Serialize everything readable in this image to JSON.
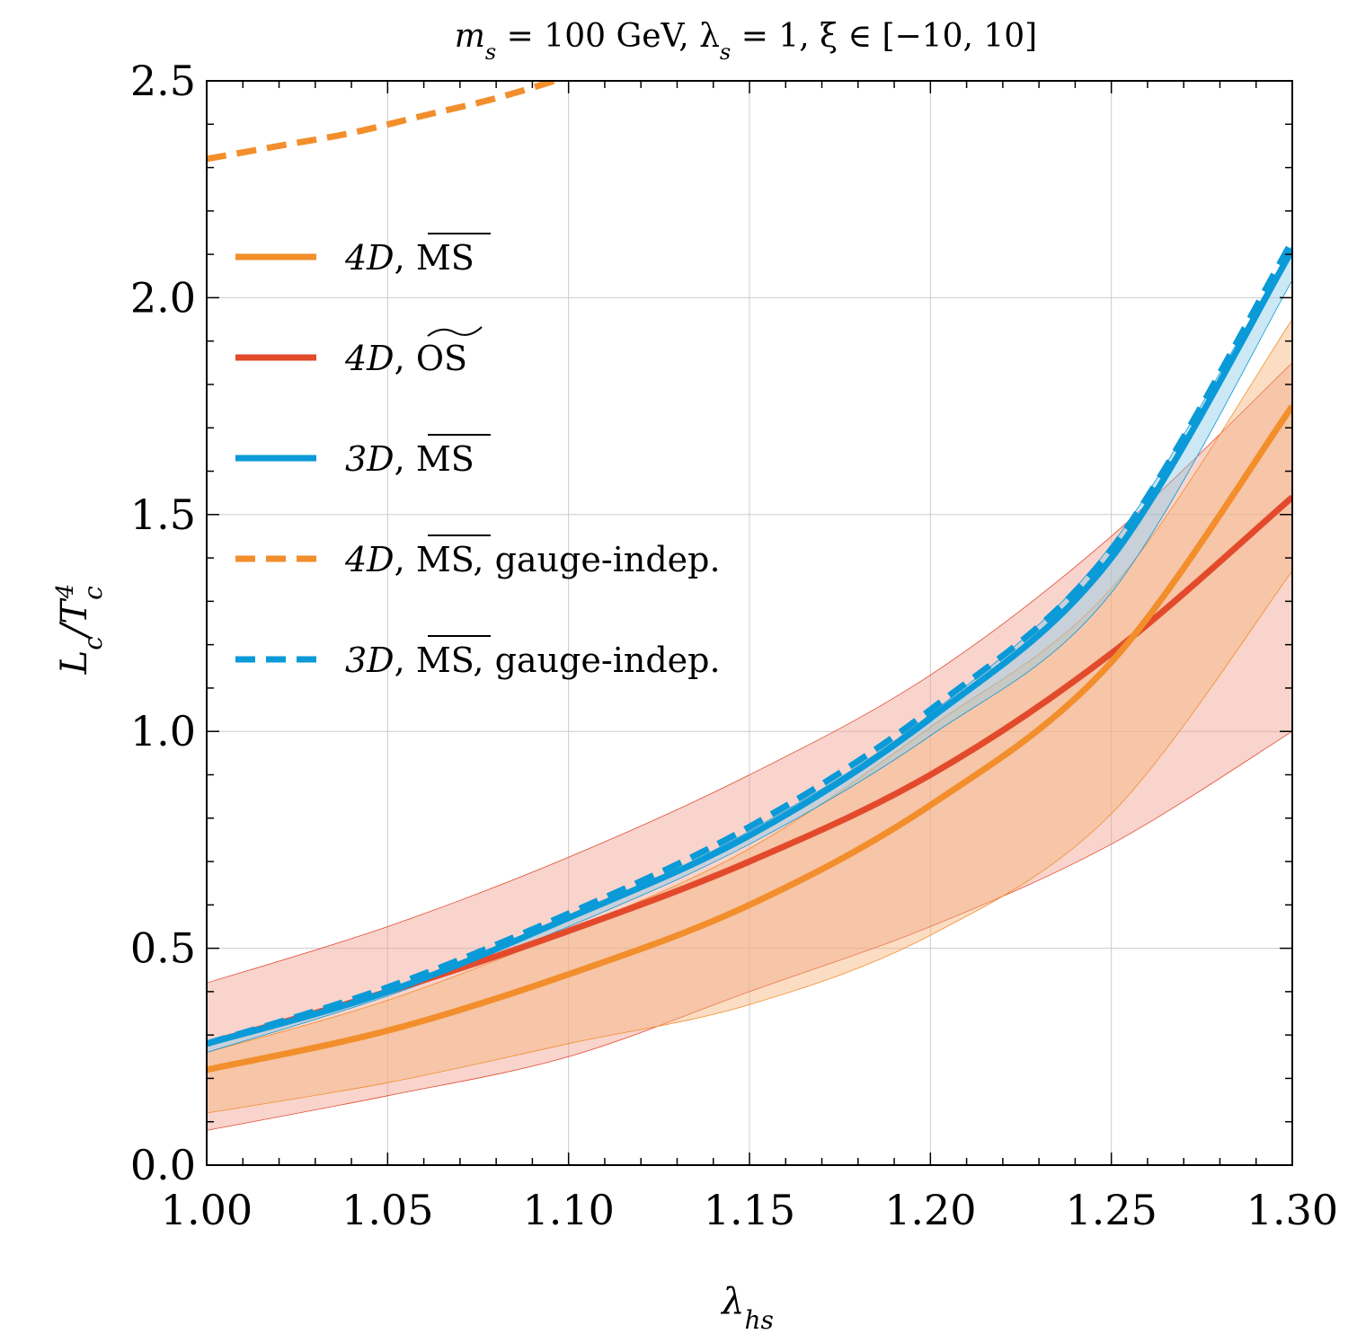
{
  "chart_data": {
    "type": "line",
    "title": "m_s = 100 GeV, λ_s = 1, ξ ∈ [−10, 10]",
    "xlabel": "λ_hs",
    "ylabel": "L_c/T_c^4",
    "xlim": [
      1.0,
      1.3
    ],
    "ylim": [
      0.0,
      2.5
    ],
    "grid": true,
    "legend_position": "upper-left",
    "x_ticks": [
      "1.00",
      "1.05",
      "1.10",
      "1.15",
      "1.20",
      "1.25",
      "1.30"
    ],
    "y_ticks": [
      "0.0",
      "0.5",
      "1.0",
      "1.5",
      "2.0",
      "2.5"
    ],
    "x": [
      1.0,
      1.05,
      1.1,
      1.15,
      1.2,
      1.25,
      1.3
    ],
    "series": [
      {
        "name": "4D, MS-bar",
        "style": "solid",
        "color": "#f28e2b",
        "values": [
          0.22,
          0.31,
          0.44,
          0.6,
          0.83,
          1.16,
          1.75
        ],
        "band_lower": [
          0.12,
          0.19,
          0.28,
          0.37,
          0.53,
          0.81,
          1.37
        ],
        "band_upper": [
          0.26,
          0.38,
          0.54,
          0.73,
          1.01,
          1.33,
          1.95
        ]
      },
      {
        "name": "4D, OS-tilde",
        "style": "solid",
        "color": "#e34a2c",
        "values": [
          0.28,
          0.4,
          0.54,
          0.7,
          0.9,
          1.18,
          1.54
        ],
        "band_lower": [
          0.08,
          0.16,
          0.25,
          0.4,
          0.55,
          0.74,
          1.0
        ],
        "band_upper": [
          0.42,
          0.55,
          0.71,
          0.9,
          1.13,
          1.45,
          1.85
        ]
      },
      {
        "name": "3D, MS-bar",
        "style": "solid",
        "color": "#0a9ad8",
        "values": [
          0.28,
          0.4,
          0.57,
          0.76,
          1.03,
          1.4,
          2.11
        ],
        "band_lower": [
          0.26,
          0.39,
          0.55,
          0.74,
          0.99,
          1.32,
          2.04
        ],
        "band_upper": [
          0.28,
          0.4,
          0.57,
          0.77,
          1.04,
          1.43,
          2.12
        ]
      },
      {
        "name": "4D, MS-bar, gauge-indep.",
        "style": "dashed",
        "color": "#f28e2b",
        "x": [
          1.0,
          1.02,
          1.04,
          1.06,
          1.08,
          1.1
        ],
        "values": [
          2.32,
          2.35,
          2.38,
          2.42,
          2.46,
          2.51
        ]
      },
      {
        "name": "3D, MS-bar, gauge-indep.",
        "style": "dashed",
        "color": "#0a9ad8",
        "values": [
          0.28,
          0.41,
          0.58,
          0.78,
          1.05,
          1.42,
          2.13
        ]
      }
    ]
  },
  "labels": {
    "title_m": "m",
    "title_s1": "s",
    "title_mid": " = 100 GeV, λ",
    "title_s2": "s",
    "title_end": " = 1, ξ ∈ [−10, 10]",
    "xlabel_main": "λ",
    "xlabel_sub": "hs",
    "ylabel_L": "L",
    "ylabel_c1": "c",
    "ylabel_slash": "/T",
    "ylabel_c2": "c",
    "ylabel_exp": "4"
  },
  "legend": [
    {
      "dim": "4D",
      "scheme": "MS",
      "suffix": "",
      "mark": "bar"
    },
    {
      "dim": "4D",
      "scheme": "OS",
      "suffix": "",
      "mark": "tilde"
    },
    {
      "dim": "3D",
      "scheme": "MS",
      "suffix": "",
      "mark": "bar"
    },
    {
      "dim": "4D",
      "scheme": "MS",
      "suffix": ", gauge-indep.",
      "mark": "bar"
    },
    {
      "dim": "3D",
      "scheme": "MS",
      "suffix": ", gauge-indep.",
      "mark": "bar"
    }
  ]
}
